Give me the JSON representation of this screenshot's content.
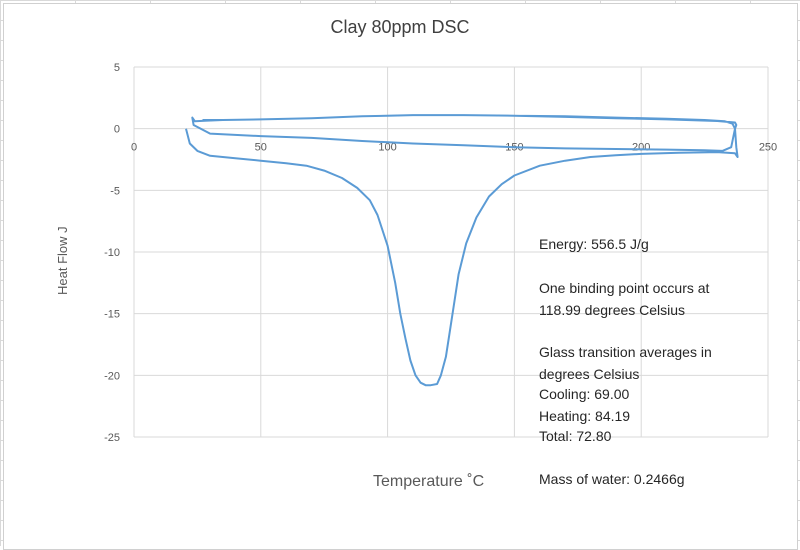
{
  "chart_data": {
    "type": "scatter",
    "title": "Clay 80ppm DSC",
    "xlabel": "Temperature ˚C",
    "ylabel": "Heat Flow J",
    "xlim": [
      0,
      250
    ],
    "ylim": [
      -25,
      5
    ],
    "x_ticks": [
      0,
      50,
      100,
      150,
      200,
      250
    ],
    "y_ticks": [
      5,
      0,
      -5,
      -10,
      -15,
      -20,
      -25
    ],
    "grid": true,
    "line_color": "#5b9bd5",
    "series": [
      {
        "x": [
          20.5,
          22,
          25,
          30,
          40,
          50,
          60,
          68,
          75,
          82,
          88,
          93,
          96,
          100,
          103,
          105,
          107,
          109,
          111,
          113,
          115,
          117,
          119.5,
          121,
          123,
          124.5,
          126,
          128,
          131,
          135,
          140,
          145,
          150,
          160,
          170,
          180,
          190,
          200,
          215,
          230,
          237,
          238,
          237.5,
          237,
          236,
          233,
          225,
          210,
          190,
          170,
          150,
          130,
          110,
          100,
          90,
          70,
          50,
          35,
          28,
          24,
          23,
          23.5,
          30,
          50,
          70,
          90,
          110,
          130,
          150,
          170,
          190,
          210,
          225,
          232,
          235.5,
          237,
          237.5,
          237,
          230,
          210,
          190,
          170,
          150,
          130,
          110,
          90,
          70,
          50,
          35,
          27
        ],
        "y": [
          0,
          -1.2,
          -1.8,
          -2.2,
          -2.4,
          -2.6,
          -2.8,
          -3.0,
          -3.4,
          -4.0,
          -4.8,
          -5.8,
          -7.0,
          -9.5,
          -12.5,
          -15,
          -17,
          -18.8,
          -20,
          -20.6,
          -20.8,
          -20.8,
          -20.7,
          -20,
          -18.5,
          -16.5,
          -14.5,
          -11.8,
          -9.3,
          -7.2,
          -5.5,
          -4.5,
          -3.8,
          -3.0,
          -2.6,
          -2.3,
          -2.15,
          -2.05,
          -1.95,
          -1.9,
          -2.0,
          -2.3,
          -1.5,
          0,
          0.4,
          0.6,
          0.7,
          0.8,
          0.9,
          1.0,
          1.05,
          1.1,
          1.1,
          1.05,
          1.0,
          0.85,
          0.75,
          0.7,
          0.65,
          0.6,
          0.9,
          0.3,
          -0.4,
          -0.6,
          -0.75,
          -1.0,
          -1.2,
          -1.35,
          -1.5,
          -1.6,
          -1.65,
          -1.7,
          -1.75,
          -1.8,
          -1.5,
          0,
          0.3,
          0.5,
          0.62,
          0.75,
          0.85,
          0.95,
          1.05,
          1.1,
          1.1,
          1.0,
          0.85,
          0.75,
          0.7,
          0.7
        ]
      }
    ]
  },
  "annotations": {
    "energy": "Energy: 556.5 J/g",
    "binding_1": "One binding  point occurs at",
    "binding_2": "118.99 degrees  Celsius",
    "glass_1": "Glass transition averages in",
    "glass_2": "degrees Celsius",
    "cooling": "Cooling: 69.00",
    "heating": "Heating: 84.19",
    "total": "Total: 72.80",
    "mass": "Mass of water: 0.2466g"
  }
}
